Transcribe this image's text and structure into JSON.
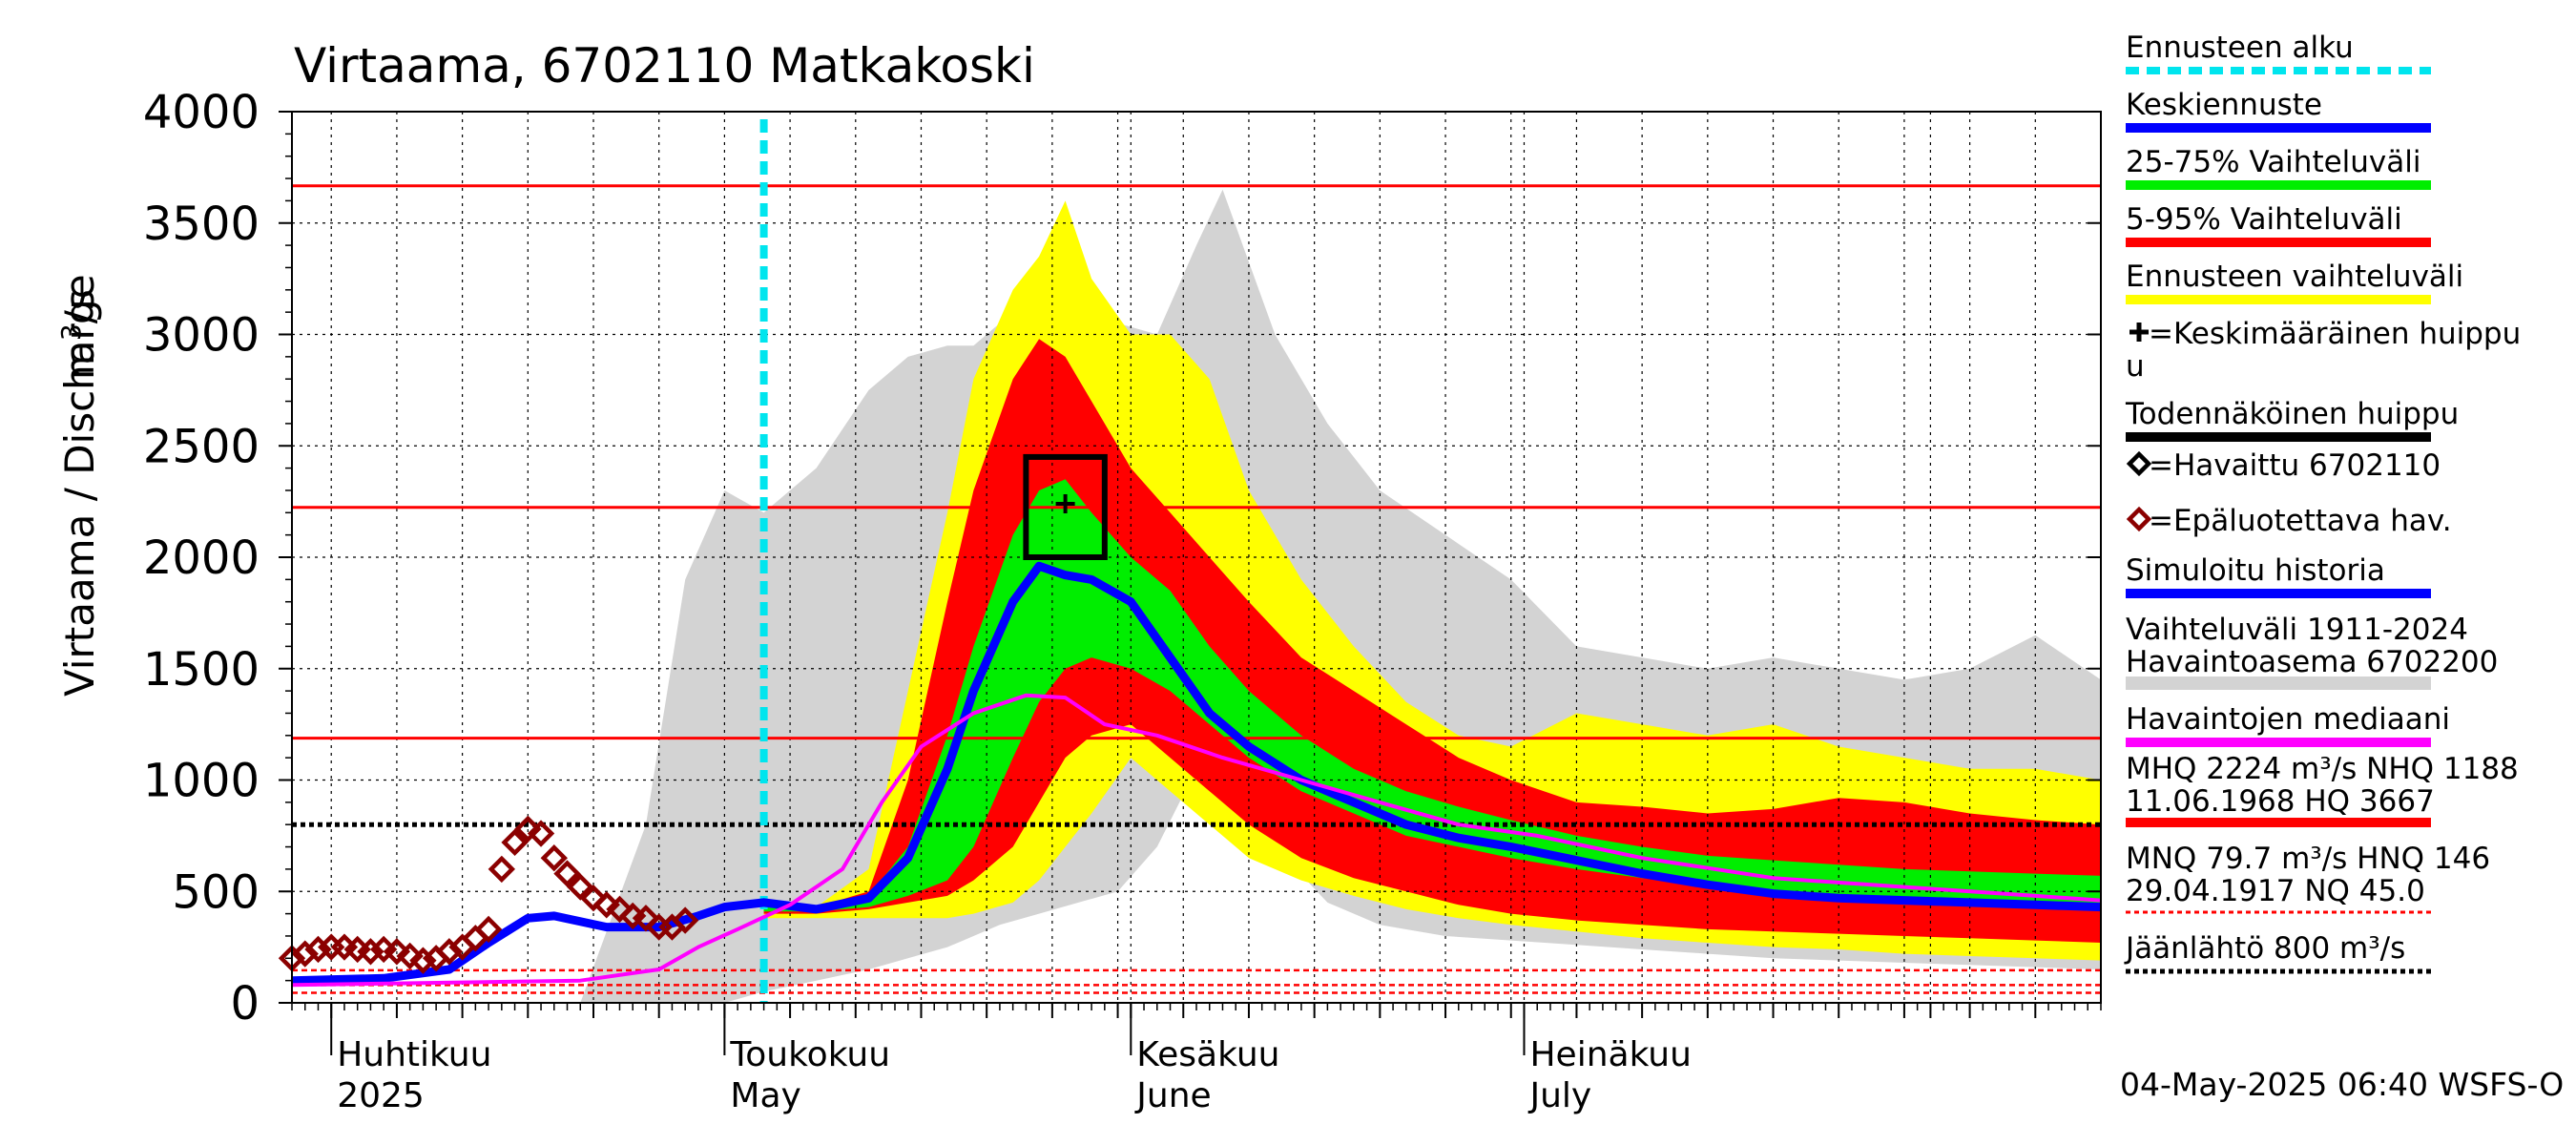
{
  "chart_data": {
    "type": "area",
    "title": "Virtaama, 6702110 Matkakoski",
    "ylabel": "Virtaama / Discharge",
    "yunit_base": "m",
    "yunit_sup": "3",
    "yunit_tail": "/s",
    "ylim": [
      0,
      4000
    ],
    "yticks": [
      0,
      500,
      1000,
      1500,
      2000,
      2500,
      3000,
      3500,
      4000
    ],
    "xlim": [
      "2025-03-29",
      "2025-08-14"
    ],
    "x_months": [
      {
        "fi": "Huhtikuu",
        "en": "2025",
        "date": "2025-04-01"
      },
      {
        "fi": "Toukokuu",
        "en": "May",
        "date": "2025-05-01"
      },
      {
        "fi": "Kesäkuu",
        "en": "June",
        "date": "2025-06-01"
      },
      {
        "fi": "Heinäkuu",
        "en": "July",
        "date": "2025-07-01"
      }
    ],
    "grid": true,
    "forecast_start": "2025-05-04",
    "colors": {
      "forecast_start": "#00e5ee",
      "mean": "#0000ff",
      "p25_75": "#00ee00",
      "p5_95": "#ff0000",
      "range": "#ffff00",
      "history_band": "#d3d3d3",
      "median": "#ff00ff",
      "threshold_high": "#ff0000",
      "ice": "#000000",
      "observed": "#8b0000"
    },
    "reference_lines": {
      "HQ": 3667,
      "MHQ": 2224,
      "NHQ": 1188,
      "ice_breakup": 800,
      "HNQ": 146,
      "MNQ": 79.7,
      "NQ": 45.0
    },
    "likely_peak_box": {
      "x0": "2025-05-24",
      "x1": "2025-05-30",
      "y0": 2000,
      "y1": 2450
    },
    "mean_peak": {
      "x": "2025-05-27",
      "y": 2240
    },
    "series": [
      {
        "name": "Vaihteluväli 1911-2024 Havaintoasema 6702200",
        "kind": "band",
        "x": [
          "2025-03-29",
          "2025-04-10",
          "2025-04-20",
          "2025-04-25",
          "2025-04-28",
          "2025-05-01",
          "2025-05-04",
          "2025-05-08",
          "2025-05-12",
          "2025-05-15",
          "2025-05-18",
          "2025-05-20",
          "2025-05-22",
          "2025-05-25",
          "2025-05-28",
          "2025-05-31",
          "2025-06-03",
          "2025-06-06",
          "2025-06-08",
          "2025-06-12",
          "2025-06-16",
          "2025-06-20",
          "2025-06-25",
          "2025-06-30",
          "2025-07-05",
          "2025-07-10",
          "2025-07-15",
          "2025-07-20",
          "2025-07-25",
          "2025-07-30",
          "2025-08-04",
          "2025-08-09",
          "2025-08-14"
        ],
        "hi": [
          0,
          0,
          0,
          800,
          1900,
          2300,
          2200,
          2400,
          2750,
          2900,
          2950,
          2950,
          3050,
          3000,
          3150,
          3050,
          3000,
          3400,
          3650,
          3000,
          2600,
          2300,
          2100,
          1900,
          1600,
          1550,
          1500,
          1550,
          1500,
          1450,
          1500,
          1650,
          1450
        ],
        "lo": [
          0,
          0,
          0,
          0,
          0,
          0,
          50,
          100,
          150,
          200,
          250,
          300,
          350,
          400,
          450,
          500,
          700,
          1050,
          1050,
          700,
          450,
          350,
          300,
          280,
          260,
          240,
          220,
          200,
          190,
          180,
          170,
          160,
          150
        ]
      },
      {
        "name": "Ennusteen vaihteluväli",
        "kind": "band",
        "x": [
          "2025-05-04",
          "2025-05-08",
          "2025-05-12",
          "2025-05-15",
          "2025-05-18",
          "2025-05-20",
          "2025-05-23",
          "2025-05-25",
          "2025-05-27",
          "2025-05-29",
          "2025-06-01",
          "2025-06-04",
          "2025-06-07",
          "2025-06-10",
          "2025-06-14",
          "2025-06-18",
          "2025-06-22",
          "2025-06-26",
          "2025-06-30",
          "2025-07-05",
          "2025-07-10",
          "2025-07-15",
          "2025-07-20",
          "2025-07-25",
          "2025-07-30",
          "2025-08-04",
          "2025-08-09",
          "2025-08-14"
        ],
        "hi": [
          430,
          430,
          600,
          1400,
          2200,
          2800,
          3200,
          3350,
          3600,
          3250,
          3000,
          3000,
          2800,
          2300,
          1900,
          1600,
          1350,
          1200,
          1150,
          1300,
          1250,
          1200,
          1250,
          1150,
          1100,
          1050,
          1050,
          1000
        ],
        "lo": [
          380,
          380,
          380,
          380,
          380,
          400,
          450,
          550,
          700,
          850,
          1100,
          950,
          800,
          650,
          550,
          480,
          420,
          380,
          350,
          320,
          290,
          270,
          250,
          240,
          220,
          210,
          200,
          190
        ]
      },
      {
        "name": "5-95% Vaihteluväli",
        "kind": "band",
        "x": [
          "2025-05-04",
          "2025-05-08",
          "2025-05-12",
          "2025-05-15",
          "2025-05-18",
          "2025-05-20",
          "2025-05-23",
          "2025-05-25",
          "2025-05-27",
          "2025-05-29",
          "2025-06-01",
          "2025-06-04",
          "2025-06-07",
          "2025-06-10",
          "2025-06-14",
          "2025-06-18",
          "2025-06-22",
          "2025-06-26",
          "2025-06-30",
          "2025-07-05",
          "2025-07-10",
          "2025-07-15",
          "2025-07-20",
          "2025-07-25",
          "2025-07-30",
          "2025-08-04",
          "2025-08-09",
          "2025-08-14"
        ],
        "hi": [
          430,
          430,
          500,
          1000,
          1800,
          2300,
          2800,
          2980,
          2900,
          2700,
          2400,
          2200,
          2000,
          1800,
          1550,
          1400,
          1250,
          1100,
          1000,
          900,
          880,
          850,
          870,
          920,
          900,
          850,
          820,
          800
        ],
        "lo": [
          400,
          400,
          420,
          450,
          480,
          550,
          700,
          900,
          1100,
          1200,
          1250,
          1100,
          950,
          800,
          650,
          560,
          500,
          440,
          400,
          370,
          350,
          330,
          320,
          310,
          300,
          290,
          280,
          270
        ]
      },
      {
        "name": "25-75% Vaihteluväli",
        "kind": "band",
        "x": [
          "2025-05-04",
          "2025-05-08",
          "2025-05-12",
          "2025-05-15",
          "2025-05-18",
          "2025-05-20",
          "2025-05-23",
          "2025-05-25",
          "2025-05-27",
          "2025-05-29",
          "2025-06-01",
          "2025-06-04",
          "2025-06-07",
          "2025-06-10",
          "2025-06-14",
          "2025-06-18",
          "2025-06-22",
          "2025-06-26",
          "2025-06-30",
          "2025-07-05",
          "2025-07-10",
          "2025-07-15",
          "2025-07-20",
          "2025-07-25",
          "2025-07-30",
          "2025-08-04",
          "2025-08-09",
          "2025-08-14"
        ],
        "hi": [
          430,
          430,
          480,
          700,
          1200,
          1600,
          2100,
          2300,
          2350,
          2200,
          2000,
          1850,
          1600,
          1400,
          1200,
          1050,
          950,
          880,
          820,
          750,
          700,
          660,
          640,
          620,
          600,
          590,
          580,
          570
        ],
        "lo": [
          410,
          410,
          430,
          480,
          550,
          700,
          1100,
          1350,
          1500,
          1550,
          1500,
          1400,
          1250,
          1100,
          950,
          850,
          750,
          700,
          650,
          600,
          560,
          530,
          500,
          480,
          460,
          440,
          430,
          420
        ]
      },
      {
        "name": "Keskiennuste",
        "kind": "line",
        "x": [
          "2025-05-04",
          "2025-05-08",
          "2025-05-12",
          "2025-05-15",
          "2025-05-18",
          "2025-05-20",
          "2025-05-23",
          "2025-05-25",
          "2025-05-27",
          "2025-05-29",
          "2025-06-01",
          "2025-06-04",
          "2025-06-07",
          "2025-06-10",
          "2025-06-14",
          "2025-06-18",
          "2025-06-22",
          "2025-06-26",
          "2025-06-30",
          "2025-07-05",
          "2025-07-10",
          "2025-07-15",
          "2025-07-20",
          "2025-07-25",
          "2025-07-30",
          "2025-08-04",
          "2025-08-09",
          "2025-08-14"
        ],
        "y": [
          450,
          420,
          470,
          650,
          1050,
          1400,
          1800,
          1960,
          1920,
          1900,
          1800,
          1550,
          1300,
          1150,
          1000,
          900,
          800,
          740,
          700,
          640,
          580,
          530,
          490,
          470,
          460,
          450,
          440,
          430
        ]
      },
      {
        "name": "Simuloitu historia",
        "kind": "line",
        "x": [
          "2025-03-29",
          "2025-04-05",
          "2025-04-10",
          "2025-04-13",
          "2025-04-16",
          "2025-04-18",
          "2025-04-22",
          "2025-04-26",
          "2025-04-29",
          "2025-05-01",
          "2025-05-04"
        ],
        "y": [
          100,
          110,
          150,
          270,
          380,
          390,
          340,
          340,
          390,
          430,
          450
        ]
      },
      {
        "name": "Havaintojen mediaani",
        "kind": "line",
        "x": [
          "2025-03-29",
          "2025-04-20",
          "2025-04-26",
          "2025-04-29",
          "2025-05-02",
          "2025-05-06",
          "2025-05-10",
          "2025-05-13",
          "2025-05-16",
          "2025-05-20",
          "2025-05-24",
          "2025-05-27",
          "2025-05-30",
          "2025-06-03",
          "2025-06-08",
          "2025-06-14",
          "2025-06-20",
          "2025-06-26",
          "2025-07-02",
          "2025-07-10",
          "2025-07-20",
          "2025-07-30",
          "2025-08-09",
          "2025-08-14"
        ],
        "y": [
          80,
          100,
          150,
          250,
          330,
          440,
          600,
          900,
          1150,
          1300,
          1380,
          1370,
          1250,
          1200,
          1100,
          1000,
          900,
          800,
          750,
          650,
          560,
          520,
          480,
          460
        ]
      },
      {
        "name": "Epäluotettava hav.",
        "kind": "scatter",
        "x": [
          "2025-03-29",
          "2025-03-30",
          "2025-03-31",
          "2025-04-01",
          "2025-04-02",
          "2025-04-03",
          "2025-04-04",
          "2025-04-05",
          "2025-04-06",
          "2025-04-07",
          "2025-04-08",
          "2025-04-09",
          "2025-04-10",
          "2025-04-11",
          "2025-04-12",
          "2025-04-13",
          "2025-04-14",
          "2025-04-15",
          "2025-04-16",
          "2025-04-17",
          "2025-04-18",
          "2025-04-19",
          "2025-04-20",
          "2025-04-21",
          "2025-04-22",
          "2025-04-23",
          "2025-04-24",
          "2025-04-25",
          "2025-04-26",
          "2025-04-27",
          "2025-04-28"
        ],
        "y": [
          200,
          220,
          240,
          250,
          250,
          240,
          230,
          240,
          230,
          210,
          190,
          200,
          230,
          250,
          290,
          330,
          600,
          720,
          780,
          760,
          650,
          580,
          520,
          470,
          440,
          420,
          390,
          380,
          340,
          340,
          370
        ]
      }
    ],
    "legend": [
      {
        "label": "Ennusteen alku",
        "style": "dash",
        "color": "#00e5ee"
      },
      {
        "label": "Keskiennuste",
        "style": "line",
        "color": "#0000ff"
      },
      {
        "label": "25-75% Vaihteluväli",
        "style": "line",
        "color": "#00ee00"
      },
      {
        "label": "5-95% Vaihteluväli",
        "style": "line",
        "color": "#ff0000"
      },
      {
        "label": "Ennusteen vaihteluväli",
        "style": "line",
        "color": "#ffff00"
      },
      {
        "label": "=Keskimääräinen huippu",
        "style": "plus",
        "color": "#000000"
      },
      {
        "label": "Todennäköinen huippu",
        "style": "line",
        "color": "#000000"
      },
      {
        "label": "=Havaittu 6702110",
        "style": "diamond",
        "color": "#000000"
      },
      {
        "label": "=Epäluotettava hav.",
        "style": "diamond",
        "color": "#8b0000"
      },
      {
        "label": "Simuloitu historia",
        "style": "line",
        "color": "#0000ff"
      },
      {
        "label": "Vaihteluväli 1911-2024",
        "label2": " Havaintoasema 6702200",
        "style": "line",
        "color": "#d3d3d3"
      },
      {
        "label": "Havaintojen mediaani",
        "style": "line",
        "color": "#ff00ff"
      },
      {
        "label": "MHQ 2224 m³/s NHQ 1188",
        "label2": "11.06.1968 HQ 3667",
        "style": "line",
        "color": "#ff0000"
      },
      {
        "label": "MNQ 79.7 m³/s HNQ  146",
        "label2": "29.04.1917 NQ 45.0",
        "style": "dotted",
        "color": "#ff0000"
      },
      {
        "label": "Jäänlähtö 800 m³/s",
        "style": "dotted",
        "color": "#000000"
      }
    ],
    "timestamp": "04-May-2025 06:40 WSFS-O"
  }
}
